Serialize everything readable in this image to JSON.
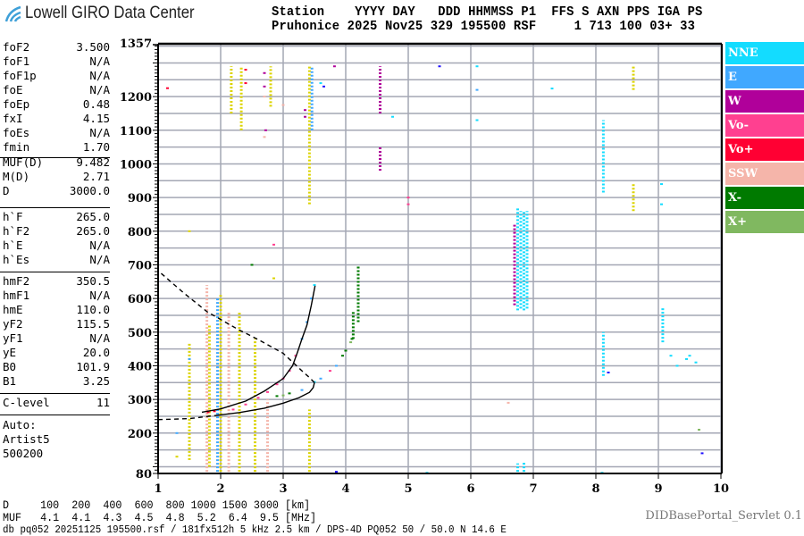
{
  "logo": {
    "text": "Lowell GIRO Data Center",
    "color": "#3fa0d8"
  },
  "header": {
    "line1": "Station    YYYY DAY   DDD HHMMSS P1  FFS S AXN PPS IGA PS",
    "line2": "Pruhonice 2025 Nov25 329 195500 RSF     1 713 100 03+ 33"
  },
  "params": {
    "group1": [
      {
        "label": "foF2",
        "value": "3.500"
      },
      {
        "label": "foF1",
        "value": "N/A"
      },
      {
        "label": "foF1p",
        "value": "N/A"
      },
      {
        "label": "foE",
        "value": "N/A"
      },
      {
        "label": "foEp",
        "value": "0.48"
      },
      {
        "label": "fxI",
        "value": "4.15"
      },
      {
        "label": "foEs",
        "value": "N/A"
      },
      {
        "label": "fmin",
        "value": "1.70"
      }
    ],
    "group2": [
      {
        "label": "MUF(D)",
        "value": "9.482"
      },
      {
        "label": "M(D)",
        "value": "2.71"
      },
      {
        "label": "D",
        "value": "3000.0"
      }
    ],
    "group3": [
      {
        "label": "h`F",
        "value": "265.0"
      },
      {
        "label": "h`F2",
        "value": "265.0"
      },
      {
        "label": "h`E",
        "value": "N/A"
      },
      {
        "label": "h`Es",
        "value": "N/A"
      }
    ],
    "group4": [
      {
        "label": "hmF2",
        "value": "350.5"
      },
      {
        "label": "hmF1",
        "value": "N/A"
      },
      {
        "label": "hmE",
        "value": "110.0"
      },
      {
        "label": "yF2",
        "value": "115.5"
      },
      {
        "label": "yF1",
        "value": "N/A"
      },
      {
        "label": "yE",
        "value": "20.0"
      },
      {
        "label": "B0",
        "value": "101.9"
      },
      {
        "label": "B1",
        "value": "3.25"
      }
    ],
    "group5": [
      {
        "label": "C-level",
        "value": "11"
      }
    ],
    "auto": [
      "Auto:",
      "Artist5",
      "500200"
    ]
  },
  "muf_table": {
    "d_row": "D     100  200  400  600  800 1000 1500 3000 [km]",
    "muf_row": "MUF   4.1  4.1  4.3  4.5  4.8  5.2  6.4  9.5 [MHz]"
  },
  "footer": "db pq052 20251125 195500.rsf / 181fx512h 5 kHz 2.5 km / DPS-4D PQ052 50 / 50.0 N 14.6 E",
  "servlet": "DIDBasePortal_Servlet 0.1",
  "chart_data": {
    "type": "scatter",
    "title": "",
    "xlabel": "",
    "ylabel": "",
    "xlim": [
      1,
      10
    ],
    "ylim": [
      80,
      1357
    ],
    "x_ticks": [
      "1",
      "2",
      "3",
      "4",
      "5",
      "6",
      "7",
      "8",
      "9",
      "10"
    ],
    "y_ticks": [
      "1357",
      "1200",
      "1100",
      "1000",
      "900",
      "800",
      "700",
      "600",
      "500",
      "400",
      "300",
      "200",
      "80"
    ],
    "grid": true,
    "legend_position": "right",
    "legend": [
      {
        "key": "NNE",
        "label": "NNE",
        "color": "#13dcff"
      },
      {
        "key": "E",
        "label": "E",
        "color": "#40a8ff"
      },
      {
        "key": "W",
        "label": "W",
        "color": "#b0009a"
      },
      {
        "key": "Vo-",
        "label": "Vo-",
        "color": "#ff4090"
      },
      {
        "key": "Vo+",
        "label": "Vo+",
        "color": "#ff0033"
      },
      {
        "key": "SSW",
        "label": "SSW",
        "color": "#f5b5aa"
      },
      {
        "key": "X-",
        "label": "X-",
        "color": "#007a00"
      },
      {
        "key": "X+",
        "label": "X+",
        "color": "#80b860"
      }
    ],
    "other_colors": {
      "Y": "#dcd400",
      "B": "#2010ff"
    },
    "curves": [
      {
        "style": "solid",
        "points": [
          [
            1.7,
            262
          ],
          [
            2.0,
            272
          ],
          [
            2.4,
            295
          ],
          [
            2.7,
            325
          ],
          [
            3.0,
            362
          ],
          [
            3.15,
            400
          ],
          [
            3.23,
            441
          ],
          [
            3.3,
            480
          ],
          [
            3.38,
            521
          ],
          [
            3.45,
            580
          ],
          [
            3.51,
            638
          ]
        ]
      },
      {
        "style": "solid",
        "points": [
          [
            1.95,
            253
          ],
          [
            2.3,
            261
          ],
          [
            2.7,
            274
          ],
          [
            3.0,
            289
          ],
          [
            3.25,
            305
          ],
          [
            3.42,
            321
          ],
          [
            3.48,
            335
          ],
          [
            3.5,
            350
          ]
        ]
      },
      {
        "style": "dashed",
        "points": [
          [
            1.0,
            240
          ],
          [
            1.5,
            243
          ],
          [
            1.95,
            253
          ]
        ]
      },
      {
        "style": "dashed",
        "points": [
          [
            3.5,
            350
          ],
          [
            3.42,
            365
          ],
          [
            3.3,
            385
          ],
          [
            3.0,
            437
          ],
          [
            2.6,
            478
          ],
          [
            2.28,
            508
          ],
          [
            1.78,
            561
          ],
          [
            1.4,
            618
          ],
          [
            1.04,
            676
          ]
        ]
      }
    ],
    "streaks": [
      [
        "Y",
        1.5,
        120,
        470
      ],
      [
        "SSW",
        1.78,
        85,
        640
      ],
      [
        "Y",
        1.82,
        100,
        520
      ],
      [
        "E",
        1.95,
        85,
        600
      ],
      [
        "Y",
        2.0,
        85,
        610
      ],
      [
        "SSW",
        2.13,
        85,
        560
      ],
      [
        "Y",
        2.3,
        85,
        560
      ],
      [
        "Y",
        2.55,
        85,
        480
      ],
      [
        "SSW",
        2.75,
        85,
        300
      ],
      [
        "Y",
        3.42,
        85,
        270
      ],
      [
        "Y",
        3.42,
        880,
        1290
      ],
      [
        "E",
        3.46,
        1100,
        1290
      ],
      [
        "Y",
        2.17,
        1150,
        1290
      ],
      [
        "Y",
        2.33,
        1100,
        1290
      ],
      [
        "Y",
        2.8,
        1170,
        1290
      ],
      [
        "W",
        4.55,
        1150,
        1290
      ],
      [
        "W",
        4.55,
        980,
        1050
      ],
      [
        "NNE",
        6.75,
        565,
        870
      ],
      [
        "NNE",
        6.8,
        570,
        860
      ],
      [
        "NNE",
        6.85,
        565,
        860
      ],
      [
        "NNE",
        6.9,
        570,
        860
      ],
      [
        "W",
        6.7,
        580,
        820
      ],
      [
        "NNE",
        6.75,
        85,
        110
      ],
      [
        "NNE",
        6.85,
        85,
        115
      ],
      [
        "NNE",
        8.12,
        915,
        1130
      ],
      [
        "NNE",
        8.12,
        370,
        500
      ],
      [
        "Y",
        8.6,
        1220,
        1290
      ],
      [
        "Y",
        8.6,
        860,
        940
      ],
      [
        "NNE",
        9.07,
        470,
        575
      ],
      [
        "X-",
        4.2,
        530,
        700
      ],
      [
        "X-",
        4.12,
        480,
        560
      ]
    ],
    "points": [
      [
        "Vo-",
        2.2,
        270
      ],
      [
        "Vo-",
        2.4,
        285
      ],
      [
        "Vo-",
        2.6,
        305
      ],
      [
        "Vo-",
        2.75,
        322
      ],
      [
        "Vo-",
        2.9,
        345
      ],
      [
        "Vo-",
        3.0,
        362
      ],
      [
        "Vo-",
        3.1,
        385
      ],
      [
        "Vo-",
        3.2,
        430
      ],
      [
        "E",
        3.3,
        480
      ],
      [
        "E",
        3.38,
        530
      ],
      [
        "E",
        3.45,
        600
      ],
      [
        "NNE",
        3.5,
        640
      ],
      [
        "Vo+",
        1.8,
        262
      ],
      [
        "Vo+",
        1.9,
        265
      ],
      [
        "X-",
        2.9,
        310
      ],
      [
        "X+",
        3.0,
        312
      ],
      [
        "X-",
        3.1,
        318
      ],
      [
        "E",
        3.3,
        328
      ],
      [
        "NNE",
        3.5,
        352
      ],
      [
        "E",
        3.6,
        362
      ],
      [
        "Vo-",
        3.75,
        385
      ],
      [
        "E",
        3.85,
        400
      ],
      [
        "X-",
        3.95,
        430
      ],
      [
        "X-",
        4.0,
        445
      ],
      [
        "X+",
        4.08,
        470
      ],
      [
        "X-",
        4.1,
        480
      ],
      [
        "Vo+",
        1.15,
        1225
      ],
      [
        "W",
        3.82,
        1290
      ],
      [
        "NNE",
        4.75,
        1140
      ],
      [
        "Vo-",
        5.0,
        880
      ],
      [
        "Vo-",
        5.0,
        900
      ],
      [
        "B",
        5.5,
        1290
      ],
      [
        "NNE",
        6.1,
        1290
      ],
      [
        "NNE",
        6.1,
        1130
      ],
      [
        "E",
        6.1,
        1220
      ],
      [
        "NNE",
        7.3,
        1224
      ],
      [
        "B",
        8.2,
        380
      ],
      [
        "B",
        9.7,
        140
      ],
      [
        "X+",
        9.65,
        210
      ],
      [
        "NNE",
        9.05,
        940
      ],
      [
        "NNE",
        9.05,
        880
      ],
      [
        "NNE",
        9.3,
        400
      ],
      [
        "NNE",
        9.45,
        420
      ],
      [
        "NNE",
        9.5,
        430
      ],
      [
        "NNE",
        9.2,
        430
      ],
      [
        "NNE",
        9.6,
        410
      ],
      [
        "SSW",
        6.6,
        290
      ],
      [
        "NNE",
        8.1,
        82
      ],
      [
        "NNE",
        5.3,
        82
      ],
      [
        "B",
        3.85,
        85
      ],
      [
        "X-",
        2.5,
        700
      ],
      [
        "Vo-",
        2.85,
        760
      ],
      [
        "Y",
        2.85,
        660
      ],
      [
        "W",
        2.7,
        1270
      ],
      [
        "W",
        2.7,
        1230
      ],
      [
        "W",
        2.72,
        1100
      ],
      [
        "W",
        3.35,
        1140
      ],
      [
        "W",
        3.35,
        1160
      ],
      [
        "Vo+",
        2.4,
        1280
      ],
      [
        "Vo+",
        2.4,
        1240
      ],
      [
        "SSW",
        2.7,
        1200
      ],
      [
        "SSW",
        3.0,
        1175
      ],
      [
        "SSW",
        2.7,
        1080
      ],
      [
        "E",
        1.5,
        420
      ],
      [
        "E",
        1.3,
        200
      ],
      [
        "Y",
        1.3,
        130
      ],
      [
        "Y",
        1.5,
        800
      ],
      [
        "NNE",
        3.6,
        1240
      ],
      [
        "B",
        3.65,
        1230
      ]
    ]
  }
}
